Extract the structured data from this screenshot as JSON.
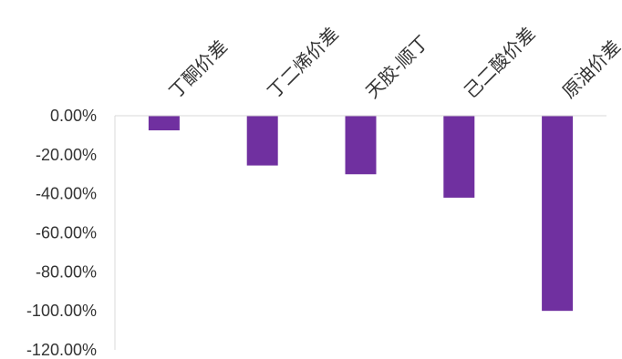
{
  "chart_data": {
    "type": "bar",
    "title": "",
    "xlabel": "",
    "ylabel": "",
    "categories": [
      "丁酮价差",
      "丁二烯价差",
      "天胶-顺丁",
      "己二酸价差",
      "原油价差"
    ],
    "values": [
      -7.5,
      -25.5,
      -30,
      -42,
      -100
    ],
    "value_unit": "%",
    "ylim": [
      -120,
      0
    ],
    "yticks": [
      "0.00%",
      "-20.00%",
      "-40.00%",
      "-60.00%",
      "-80.00%",
      "-100.00%",
      "-120.00%"
    ],
    "ytick_values": [
      0,
      -20,
      -40,
      -60,
      -80,
      -100,
      -120
    ],
    "x_tick_position": "top",
    "x_tick_rotation": "diagonal",
    "grid": false,
    "legend": "none",
    "bar_color": "#7030A0",
    "axis_color": "#D9D9D9"
  }
}
